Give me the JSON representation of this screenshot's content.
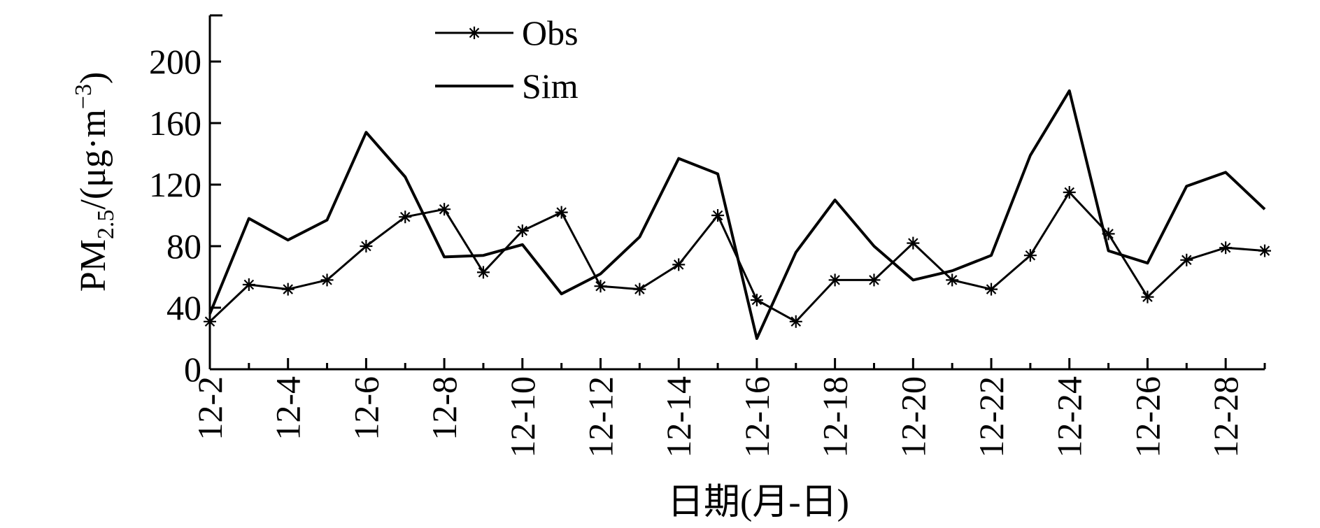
{
  "chart_data": {
    "type": "line",
    "xlabel": "日期(月-日)",
    "ylabel": {
      "main": "PM",
      "subscript": "2.5",
      "unit_prefix": "/(μg·m",
      "superscript": "−3",
      "unit_suffix": ")"
    },
    "ylim": [
      0,
      230
    ],
    "yticks": [
      0,
      40,
      80,
      120,
      160,
      200
    ],
    "x": [
      "12-2",
      "12-3",
      "12-4",
      "12-5",
      "12-6",
      "12-7",
      "12-8",
      "12-9",
      "12-10",
      "12-11",
      "12-12",
      "12-13",
      "12-14",
      "12-15",
      "12-16",
      "12-17",
      "12-18",
      "12-19",
      "12-20",
      "12-21",
      "12-22",
      "12-23",
      "12-24",
      "12-25",
      "12-26",
      "12-27",
      "12-28",
      "12-29"
    ],
    "xtick_labels": [
      "12-2",
      "12-4",
      "12-6",
      "12-8",
      "12-10",
      "12-12",
      "12-14",
      "12-16",
      "12-18",
      "12-20",
      "12-22",
      "12-24",
      "12-26",
      "12-28"
    ],
    "grid": false,
    "legend_position": "top-left",
    "series": [
      {
        "name": "Obs",
        "marker": "asterisk",
        "color": "#000000",
        "values": [
          31,
          55,
          52,
          58,
          80,
          99,
          104,
          63,
          90,
          102,
          54,
          52,
          68,
          100,
          45,
          31,
          58,
          58,
          82,
          58,
          52,
          74,
          115,
          88,
          47,
          71,
          79,
          77
        ]
      },
      {
        "name": "Sim",
        "marker": "none",
        "color": "#000000",
        "values": [
          36,
          98,
          84,
          97,
          154,
          125,
          73,
          74,
          81,
          49,
          62,
          86,
          137,
          127,
          20,
          76,
          110,
          80,
          58,
          64,
          74,
          139,
          181,
          77,
          69,
          119,
          128,
          104
        ]
      }
    ]
  }
}
